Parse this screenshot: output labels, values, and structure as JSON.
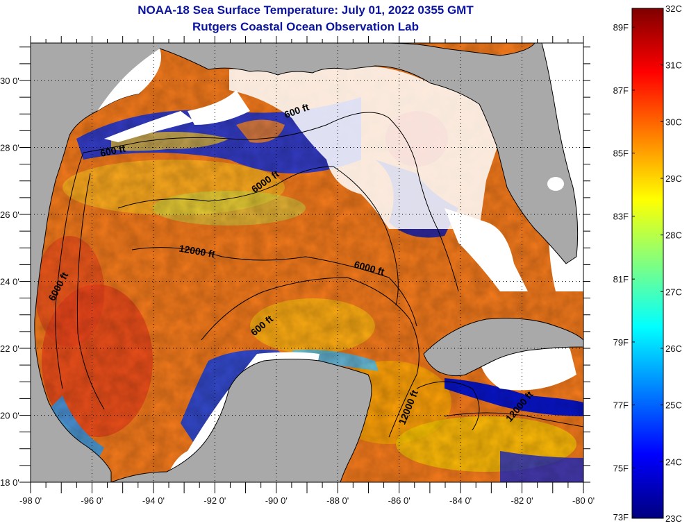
{
  "header": {
    "title": "NOAA-18 Sea Surface Temperature:  July 01, 2022 0355 GMT",
    "subtitle": "Rutgers Coastal Ocean Observation Lab"
  },
  "map": {
    "lon_range": [
      -98,
      -80
    ],
    "lat_range": [
      18,
      31.1
    ],
    "x_ticks": [
      {
        "value": -98,
        "label": "-98 0'"
      },
      {
        "value": -96,
        "label": "-96 0'"
      },
      {
        "value": -94,
        "label": "-94 0'"
      },
      {
        "value": -92,
        "label": "-92 0'"
      },
      {
        "value": -90,
        "label": "-90 0'"
      },
      {
        "value": -88,
        "label": "-88 0'"
      },
      {
        "value": -86,
        "label": "-86 0'"
      },
      {
        "value": -84,
        "label": "-84 0'"
      },
      {
        "value": -82,
        "label": "-82 0'"
      },
      {
        "value": -80,
        "label": "-80 0'"
      }
    ],
    "y_ticks": [
      {
        "value": 30,
        "label": "30 0'"
      },
      {
        "value": 28,
        "label": "28 0'"
      },
      {
        "value": 26,
        "label": "26 0'"
      },
      {
        "value": 24,
        "label": "24 0'"
      },
      {
        "value": 22,
        "label": "22 0'"
      },
      {
        "value": 20,
        "label": "20 0'"
      },
      {
        "value": 18,
        "label": "18 0'"
      }
    ],
    "contour_labels": [
      {
        "text": "600 ft",
        "lon": -95.3,
        "lat": 27.8,
        "angle": -12
      },
      {
        "text": "600 ft",
        "lon": -89.3,
        "lat": 29.0,
        "angle": -20
      },
      {
        "text": "6000 ft",
        "lon": -90.3,
        "lat": 26.9,
        "angle": -35
      },
      {
        "text": "12000 ft",
        "lon": -92.6,
        "lat": 24.8,
        "angle": 10
      },
      {
        "text": "6000 ft",
        "lon": -97.0,
        "lat": 23.8,
        "angle": -62
      },
      {
        "text": "6000 ft",
        "lon": -87.0,
        "lat": 24.3,
        "angle": 15
      },
      {
        "text": "600 ft",
        "lon": -90.4,
        "lat": 22.6,
        "angle": -40
      },
      {
        "text": "12000 ft",
        "lon": -85.6,
        "lat": 20.2,
        "angle": -68
      },
      {
        "text": "12000 ft",
        "lon": -82.0,
        "lat": 20.2,
        "angle": -50
      }
    ],
    "colors": {
      "land": "#a9a9a9",
      "cloud": "#ffffff"
    }
  },
  "colorbar": {
    "celsius_range": [
      23,
      32
    ],
    "celsius_ticks": [
      {
        "value": 32,
        "label": "32C"
      },
      {
        "value": 31,
        "label": "31C"
      },
      {
        "value": 30,
        "label": "30C"
      },
      {
        "value": 29,
        "label": "29C"
      },
      {
        "value": 28,
        "label": "28C"
      },
      {
        "value": 27,
        "label": "27C"
      },
      {
        "value": 26,
        "label": "26C"
      },
      {
        "value": 25,
        "label": "25C"
      },
      {
        "value": 24,
        "label": "24C"
      },
      {
        "value": 23,
        "label": "23C"
      }
    ],
    "fahrenheit_ticks": [
      {
        "value": 89,
        "label": "89F"
      },
      {
        "value": 87,
        "label": "87F"
      },
      {
        "value": 85,
        "label": "85F"
      },
      {
        "value": 83,
        "label": "83F"
      },
      {
        "value": 81,
        "label": "81F"
      },
      {
        "value": 79,
        "label": "79F"
      },
      {
        "value": 77,
        "label": "77F"
      },
      {
        "value": 75,
        "label": "75F"
      },
      {
        "value": 73,
        "label": "73F"
      }
    ],
    "stops": [
      "#00007f",
      "#0000ff",
      "#0080ff",
      "#00ffff",
      "#80ff80",
      "#ffff00",
      "#ff8000",
      "#ff0000",
      "#7f0000"
    ]
  }
}
